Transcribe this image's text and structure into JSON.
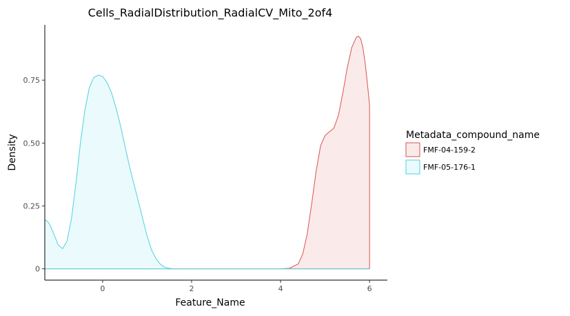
{
  "chart_data": {
    "type": "area",
    "title": "Cells_RadialDistribution_RadialCV_Mito_2of4",
    "xlabel": "Feature_Name",
    "ylabel": "Density",
    "xlim": [
      -1.3,
      6.4
    ],
    "ylim": [
      -0.045,
      0.97
    ],
    "x_ticks": [
      0,
      2,
      4,
      6
    ],
    "x_tick_labels": [
      "0",
      "2",
      "4",
      "6"
    ],
    "y_ticks": [
      0,
      0.25,
      0.5,
      0.75
    ],
    "y_tick_labels": [
      "0",
      "0.25",
      "0.50",
      "0.75"
    ],
    "grid": false,
    "legend": {
      "title": "Metadata_compound_name",
      "placement": "right"
    },
    "series": [
      {
        "name": "FMF-04-159-2",
        "line_color": "#d9534f",
        "fill_color": "#fbeaea",
        "x": [
          -1.3,
          4.0,
          4.2,
          4.4,
          4.5,
          4.6,
          4.7,
          4.8,
          4.9,
          5.0,
          5.1,
          5.2,
          5.3,
          5.4,
          5.5,
          5.6,
          5.7,
          5.75,
          5.8,
          5.85,
          5.9,
          5.95,
          6.0,
          6.0
        ],
        "y": [
          0.0,
          0.0,
          0.002,
          0.02,
          0.06,
          0.14,
          0.26,
          0.39,
          0.49,
          0.53,
          0.545,
          0.56,
          0.61,
          0.7,
          0.8,
          0.88,
          0.92,
          0.925,
          0.915,
          0.88,
          0.82,
          0.74,
          0.65,
          0.0
        ]
      },
      {
        "name": "FMF-05-176-1",
        "line_color": "#4dd0e1",
        "fill_color": "#ebfafc",
        "x": [
          -1.3,
          -1.3,
          -1.25,
          -1.2,
          -1.1,
          -1.0,
          -0.9,
          -0.8,
          -0.7,
          -0.6,
          -0.5,
          -0.4,
          -0.3,
          -0.2,
          -0.1,
          0.0,
          0.1,
          0.2,
          0.3,
          0.4,
          0.5,
          0.6,
          0.7,
          0.8,
          0.9,
          1.0,
          1.1,
          1.2,
          1.3,
          1.4,
          1.5,
          1.6,
          2.0,
          6.0,
          6.0
        ],
        "y": [
          0.0,
          0.195,
          0.19,
          0.18,
          0.14,
          0.095,
          0.08,
          0.11,
          0.2,
          0.34,
          0.5,
          0.63,
          0.72,
          0.76,
          0.77,
          0.765,
          0.74,
          0.7,
          0.64,
          0.57,
          0.49,
          0.41,
          0.34,
          0.27,
          0.2,
          0.13,
          0.075,
          0.04,
          0.018,
          0.006,
          0.002,
          0.0,
          0.0,
          0.0,
          0.0
        ]
      }
    ]
  }
}
